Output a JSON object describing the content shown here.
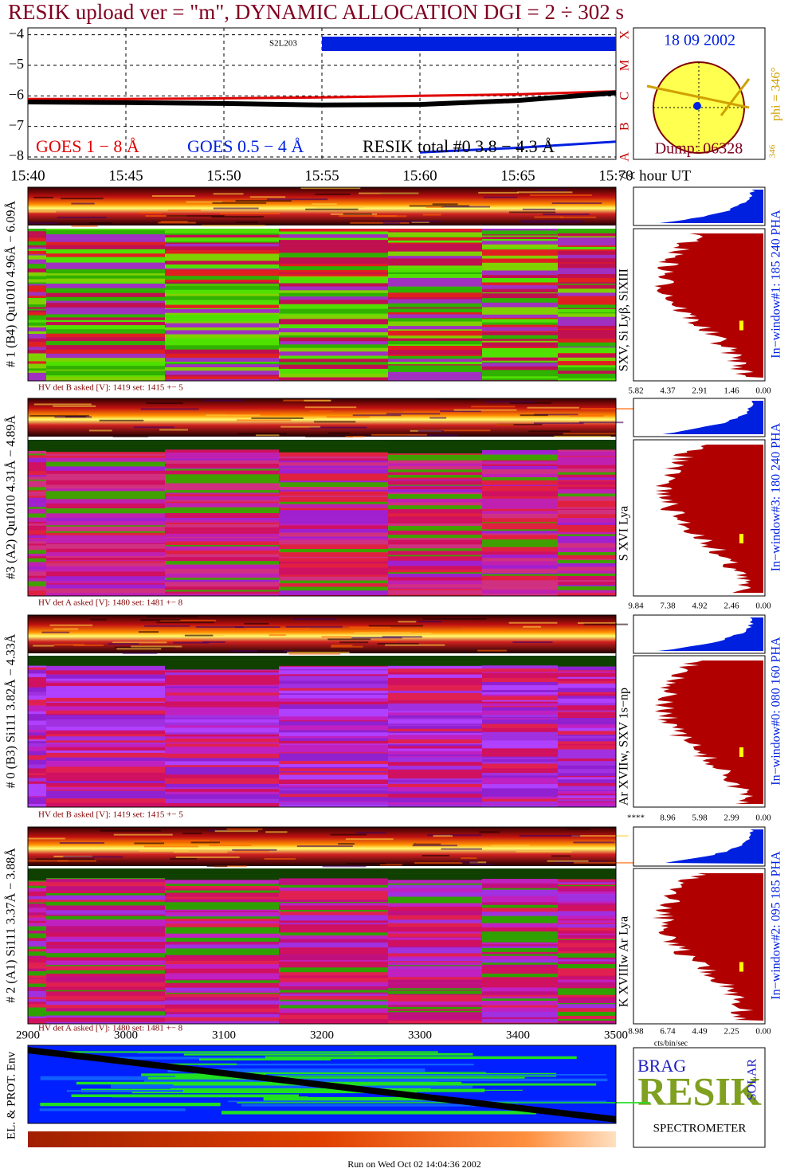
{
  "chart_data": {
    "type": "line",
    "title": "RESIK upload ver = \"m\", DYNAMIC ALLOCATION  DGI =   2 ÷ 302 s",
    "x_label": "<< hour UT",
    "x": [
      15.4,
      15.45,
      15.5,
      15.55,
      15.6,
      15.65,
      15.7
    ],
    "xlim": [
      15.4,
      15.7
    ],
    "xticks": [
      {
        "value": 15.4,
        "label": "15:40"
      },
      {
        "value": 15.45,
        "label": "15:45"
      },
      {
        "value": 15.5,
        "label": "15:50"
      },
      {
        "value": 15.55,
        "label": "15:55"
      },
      {
        "value": 15.6,
        "label": "15:60"
      },
      {
        "value": 15.65,
        "label": "15:65"
      },
      {
        "value": 15.7,
        "label": "15:70"
      }
    ],
    "ylim": [
      -8,
      -3.8
    ],
    "yticks": [
      {
        "value": -4,
        "label": "−4"
      },
      {
        "value": -5,
        "label": "−5"
      },
      {
        "value": -6,
        "label": "−6"
      },
      {
        "value": -7,
        "label": "−7"
      },
      {
        "value": -8,
        "label": "−8"
      }
    ],
    "class_labels": [
      "X",
      "M",
      "C",
      "B",
      "A"
    ],
    "grid": true,
    "annotation": "S2L203",
    "series": [
      {
        "name": "GOES 1 − 8 Å",
        "color": "#e00000",
        "values": [
          -6.1,
          -6.1,
          -6.08,
          -6.05,
          -6.0,
          -5.95,
          -5.85
        ]
      },
      {
        "name": "GOES 0.5 − 4 Å",
        "color": "#0020e0",
        "values": [
          null,
          null,
          null,
          null,
          -7.85,
          -7.7,
          -7.5
        ]
      },
      {
        "name": "RESIK total #0  3.8 − 4.3 Å",
        "color": "#000000",
        "values": [
          -6.2,
          -6.22,
          -6.25,
          -6.3,
          -6.28,
          -6.15,
          -5.9
        ]
      }
    ]
  },
  "sun": {
    "date": "18 09 2002",
    "dump": "Dump: 06328",
    "phi": "phi = 346°",
    "small": "346"
  },
  "panels": [
    {
      "label": "# 1 (B4) Qu1010 4.96Å − 6.09Å",
      "lines": "SXV, Si Lyβ, SiXIII",
      "window": "In−window#1:  185 240 PHA",
      "hv": "HV det B asked [V]:  1419 set:  1415 +−    5",
      "hist_ticks": [
        "5.82",
        "4.37",
        "2.91",
        "1.46",
        "0.00"
      ]
    },
    {
      "label": "#3 (A2) Qu1010  4.31Å − 4.89Å",
      "lines": "S XVI Lya",
      "window": "In−window#3:  180 240 PHA",
      "hv": "HV det A asked [V]:  1480 set:  1481 +−    8",
      "hist_ticks": [
        "9.84",
        "7.38",
        "4.92",
        "2.46",
        "0.00"
      ]
    },
    {
      "label": "# 0 (B3) Si111  3.82Å − 4.33Å",
      "lines": "Ar XVIIw,  SXV 1s−np",
      "window": "In−window#0:  080 160 PHA",
      "hv": "HV det B asked [V]:  1419 set:  1415 +−    5",
      "hist_ticks": [
        "****",
        "8.96",
        "5.98",
        "2.99",
        "0.00"
      ]
    },
    {
      "label": "# 2 (A1) Si111  3.37Å − 3.88Å",
      "lines": "K XVIIIw  Ar Lya",
      "window": "In−window#2:  095 185 PHA",
      "hv": "HV det A asked [V]:  1480 set:  1481 +−    8",
      "hist_ticks": [
        "8.98",
        "6.74",
        "4.49",
        "2.25",
        "0.00"
      ]
    }
  ],
  "hist_unit": "cts/bin/sec",
  "bottom": {
    "ylabel": "EL. & PROT. Env",
    "xticks": [
      "2900",
      "3000",
      "3100",
      "3200",
      "3300",
      "3400",
      "3500"
    ]
  },
  "logo": {
    "name": "RESIK",
    "sub": "SPECTROMETER",
    "left": "BRAG",
    "right": "SOLAR"
  },
  "footer": "Run on Wed Oct 02 14:04:36 2002"
}
